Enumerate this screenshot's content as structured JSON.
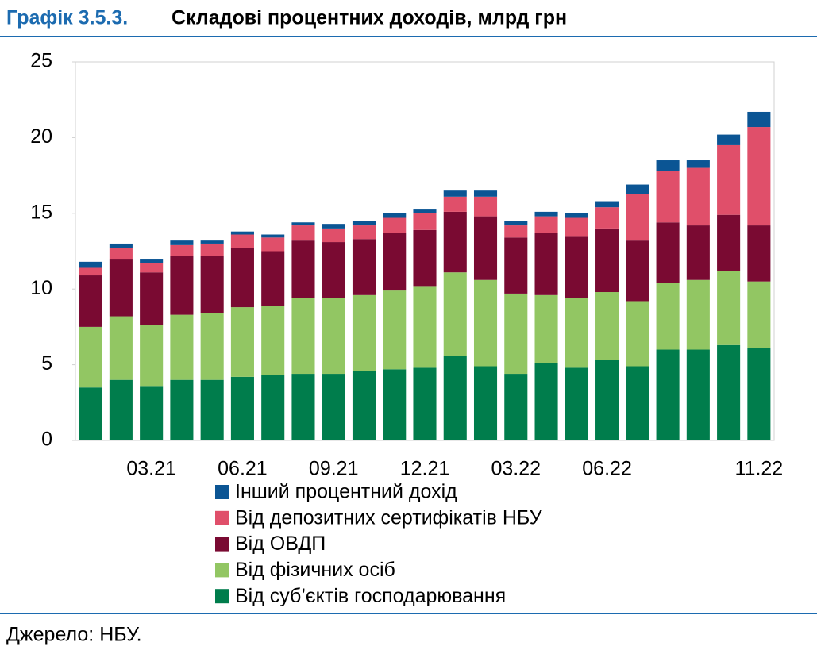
{
  "chart_data": {
    "type": "stacked_bar",
    "title_label": "Графік 3.5.3.",
    "title": "Складові процентних доходів, млрд грн",
    "source": "Джерело: НБУ.",
    "categories": [
      null,
      null,
      "03.21",
      null,
      null,
      "06.21",
      null,
      null,
      "09.21",
      null,
      null,
      "12.21",
      null,
      null,
      "03.22",
      null,
      null,
      "06.22",
      null,
      null,
      null,
      null,
      "11.22"
    ],
    "series": [
      {
        "name": "Від суб’єктів господарювання",
        "color": "#007d4c",
        "values": [
          3.5,
          4.0,
          3.6,
          4.0,
          4.0,
          4.2,
          4.3,
          4.4,
          4.4,
          4.6,
          4.7,
          4.8,
          5.6,
          4.9,
          4.4,
          5.1,
          4.8,
          5.3,
          4.9,
          6.0,
          6.0,
          6.3,
          6.1
        ]
      },
      {
        "name": "Від фізичних осіб",
        "color": "#92c663",
        "values": [
          4.0,
          4.2,
          4.0,
          4.3,
          4.4,
          4.6,
          4.6,
          5.0,
          5.0,
          5.0,
          5.2,
          5.4,
          5.5,
          5.7,
          5.3,
          4.5,
          4.6,
          4.5,
          4.3,
          4.4,
          4.6,
          4.9,
          4.4
        ]
      },
      {
        "name": "Від ОВДП",
        "color": "#7a0a32",
        "values": [
          3.4,
          3.8,
          3.5,
          3.9,
          3.8,
          3.9,
          3.6,
          3.8,
          3.7,
          3.7,
          3.8,
          3.7,
          4.0,
          4.2,
          3.7,
          4.1,
          4.1,
          4.2,
          4.0,
          4.0,
          3.6,
          3.7,
          3.7
        ]
      },
      {
        "name": "Від депозитних сертифікатів НБУ",
        "color": "#e04f6a",
        "values": [
          0.5,
          0.7,
          0.6,
          0.7,
          0.8,
          0.9,
          0.9,
          1.0,
          0.9,
          0.9,
          1.0,
          1.1,
          1.0,
          1.3,
          0.8,
          1.1,
          1.2,
          1.4,
          3.1,
          3.4,
          3.8,
          4.6,
          6.5
        ]
      },
      {
        "name": "Інший процентний дохід",
        "color": "#0b5594",
        "values": [
          0.4,
          0.3,
          0.3,
          0.3,
          0.2,
          0.2,
          0.2,
          0.2,
          0.3,
          0.3,
          0.3,
          0.3,
          0.4,
          0.4,
          0.3,
          0.3,
          0.3,
          0.4,
          0.6,
          0.7,
          0.5,
          0.7,
          1.0
        ]
      }
    ],
    "ylim": [
      0,
      25
    ],
    "yticks": [
      0,
      5,
      10,
      15,
      20,
      25
    ],
    "grid": false
  }
}
